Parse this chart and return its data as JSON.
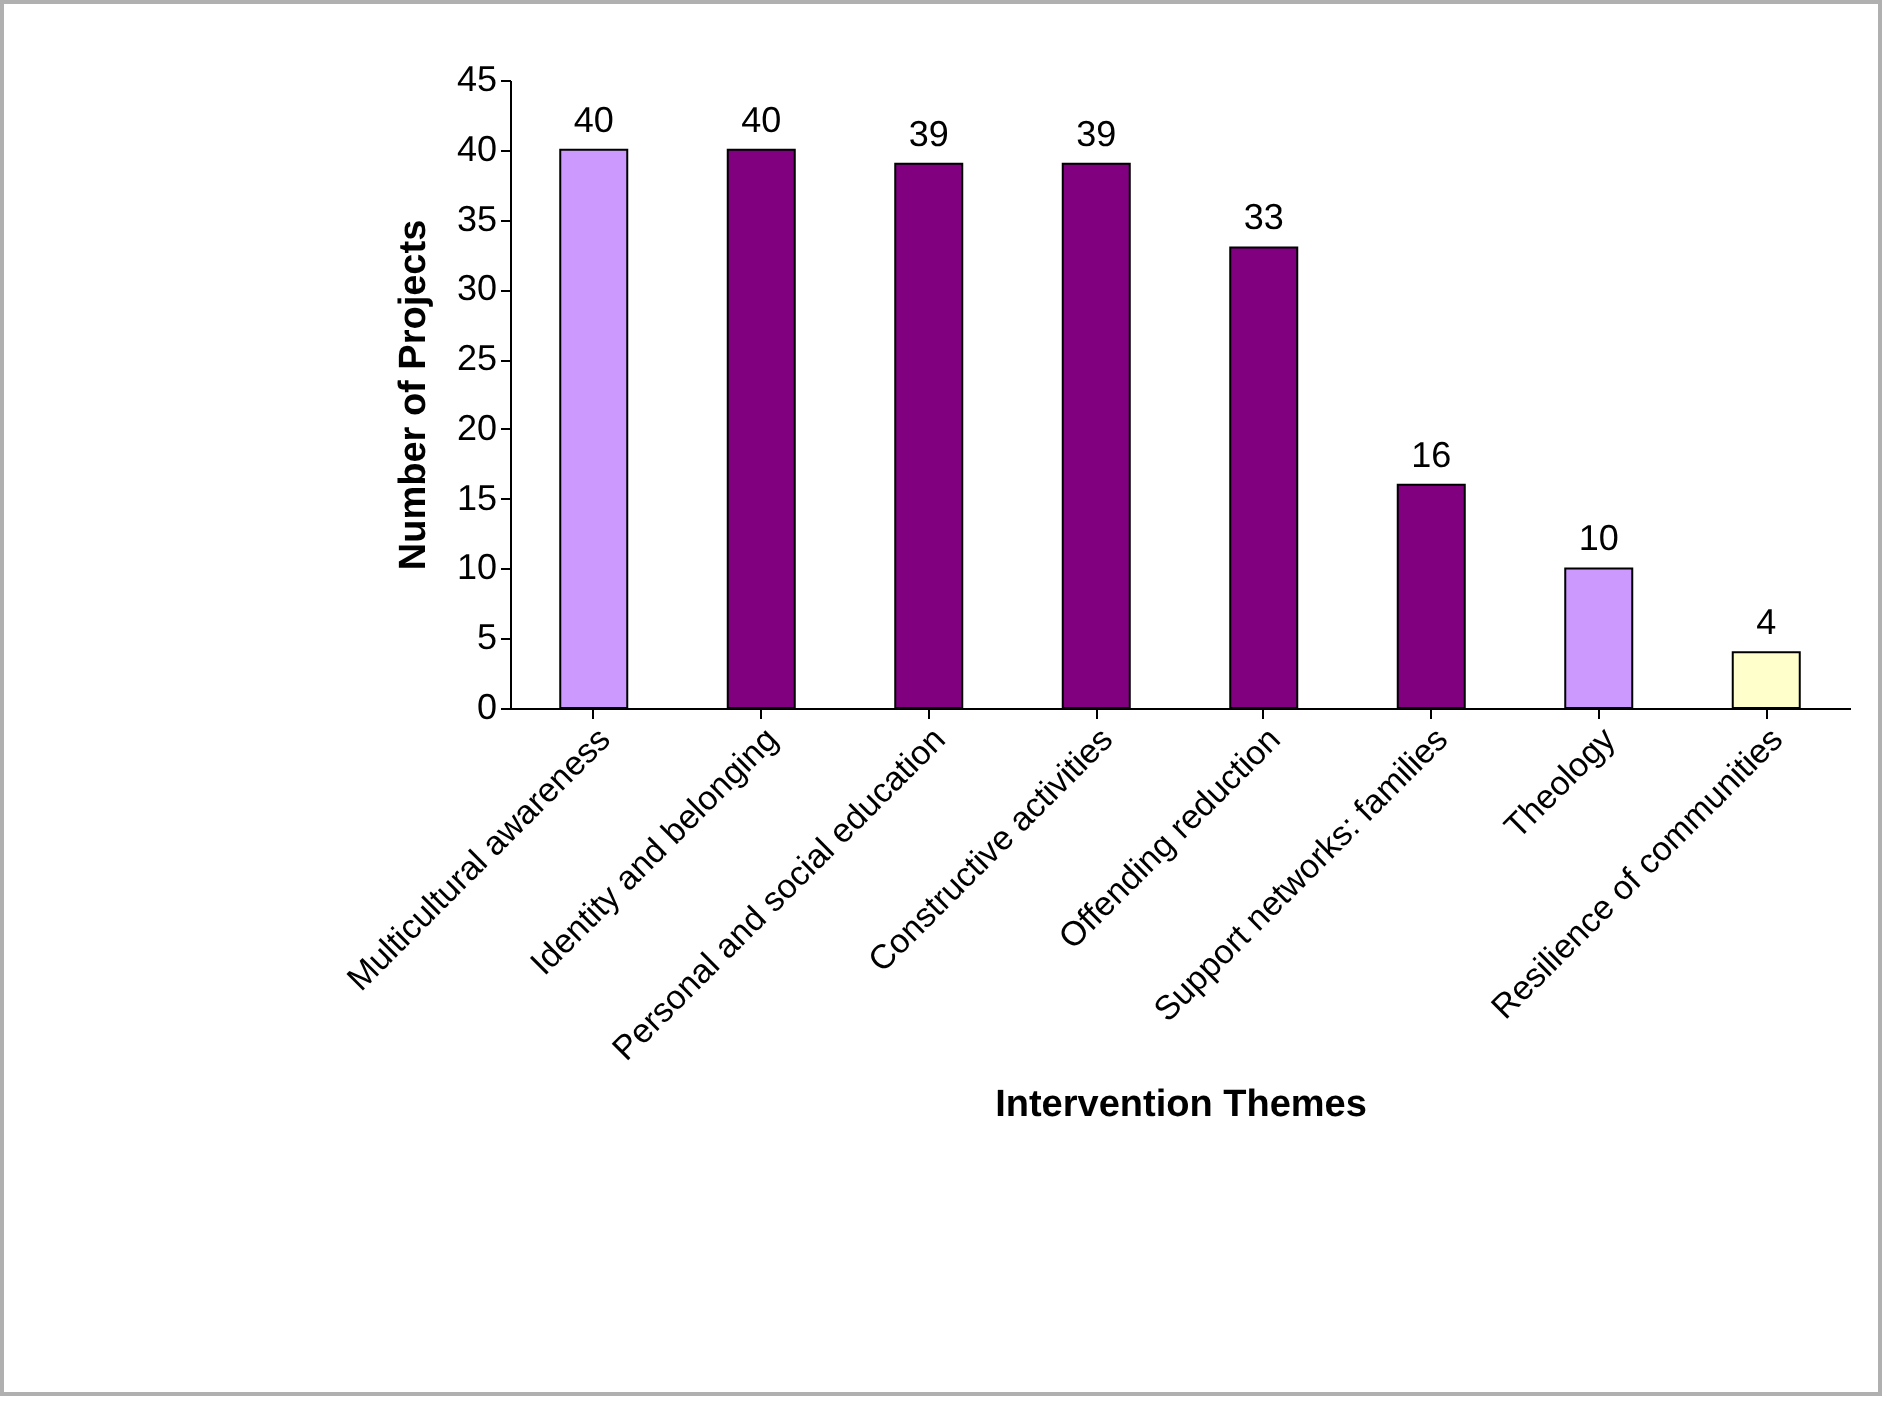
{
  "chart_data": {
    "type": "bar",
    "xlabel": "Intervention Themes",
    "ylabel": "Number of Projects",
    "categories": [
      "Multicultural awareness",
      "Identity and belonging",
      "Personal and social education",
      "Constructive activities",
      "Offending reduction",
      "Support networks: families",
      "Theology",
      "Resilience of communities"
    ],
    "values": [
      40,
      40,
      39,
      39,
      33,
      16,
      10,
      4
    ],
    "colors": [
      "#cc99ff",
      "#800080",
      "#800080",
      "#800080",
      "#800080",
      "#800080",
      "#cc99ff",
      "#ffffcc"
    ],
    "ylim": [
      0,
      45
    ],
    "yticks": [
      0,
      5,
      10,
      15,
      20,
      25,
      30,
      35,
      40,
      45
    ],
    "grid": false,
    "data_labels": true
  }
}
